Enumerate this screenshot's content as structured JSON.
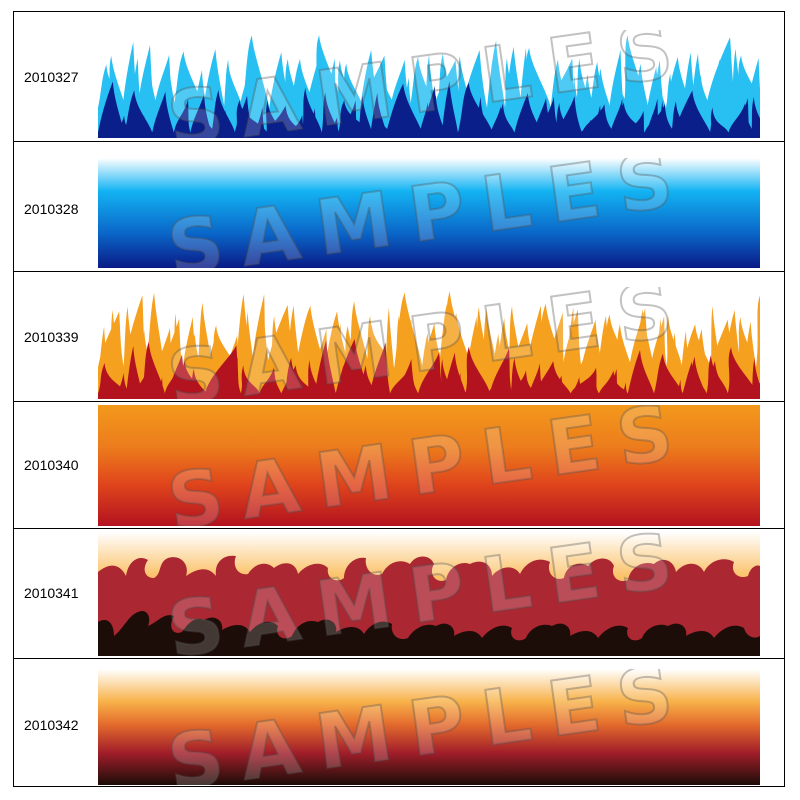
{
  "watermark": "SAMPLES",
  "swatches": [
    {
      "code": "2010327",
      "style": "flame",
      "colors": {
        "top": "#28bff2",
        "base": "#0a1f8a"
      }
    },
    {
      "code": "2010328",
      "style": "gradient",
      "colors": {
        "stops": [
          "#ffffff",
          "#13b3f3",
          "#0a1a86"
        ]
      }
    },
    {
      "code": "2010339",
      "style": "flame",
      "colors": {
        "top": "#f5a01e",
        "base": "#b3121f"
      }
    },
    {
      "code": "2010340",
      "style": "gradient",
      "colors": {
        "stops": [
          "#f3991c",
          "#e4561c",
          "#b3121f"
        ]
      }
    },
    {
      "code": "2010341",
      "style": "curl-flame",
      "colors": {
        "sky": "#fbc36b",
        "mid": "#ab2732",
        "base": "#1c0d08"
      }
    },
    {
      "code": "2010342",
      "style": "gradient",
      "colors": {
        "stops": [
          "#ffffff",
          "#f8b24a",
          "#a21e2a",
          "#1c0d08"
        ]
      }
    }
  ]
}
